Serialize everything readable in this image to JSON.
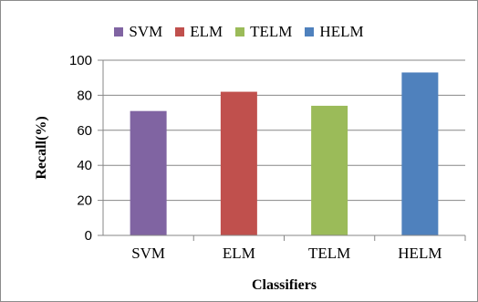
{
  "chart_data": {
    "type": "bar",
    "categories": [
      "SVM",
      "ELM",
      "TELM",
      "HELM"
    ],
    "values": [
      71,
      82,
      74,
      93
    ],
    "colors": [
      "#8064a2",
      "#c0504d",
      "#9bbb59",
      "#4f81bd"
    ],
    "xlabel": "Classifiers",
    "ylabel": "Recall(%)",
    "ylim": [
      0,
      100
    ],
    "yticks": [
      "0",
      "20",
      "40",
      "60",
      "80",
      "100"
    ],
    "grid": true,
    "legend": {
      "placement": "top",
      "entries": [
        "SVM",
        "ELM",
        "TELM",
        "HELM"
      ]
    }
  }
}
